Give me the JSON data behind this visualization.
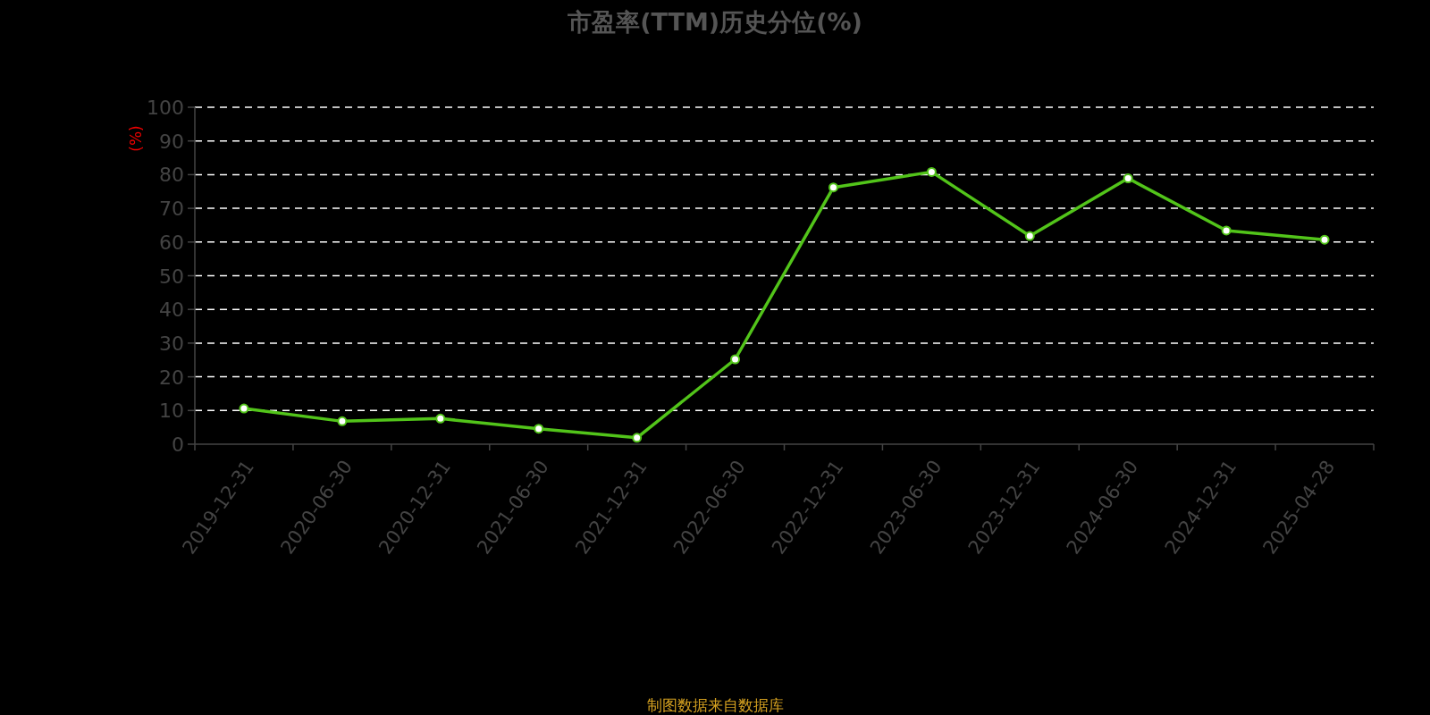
{
  "chart_data": {
    "type": "line",
    "title": "市盈率(TTM)历史分位(%)",
    "ylabel": "(%)",
    "categories": [
      "2019-12-31",
      "2020-06-30",
      "2020-12-31",
      "2021-06-30",
      "2021-12-31",
      "2022-06-30",
      "2022-12-31",
      "2023-06-30",
      "2023-12-31",
      "2024-06-30",
      "2024-12-31",
      "2025-04-28"
    ],
    "values": [
      10.6,
      6.8,
      7.6,
      4.6,
      1.9,
      25.2,
      76.2,
      80.8,
      61.8,
      78.9,
      63.4,
      60.7
    ],
    "color": "#52c41a",
    "ylim": [
      0,
      100
    ],
    "yticks": [
      0,
      10,
      20,
      30,
      40,
      50,
      60,
      70,
      80,
      90,
      100
    ],
    "grid": "y",
    "marker": "circle",
    "line_style": "solid",
    "annotations": [
      "制图数据来自数据库"
    ]
  }
}
